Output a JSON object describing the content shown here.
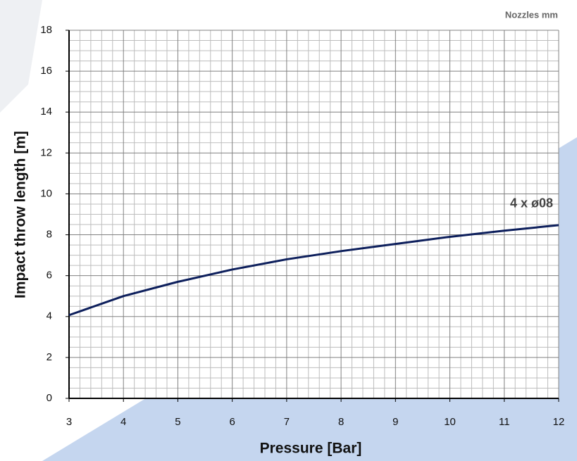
{
  "chart_data": {
    "type": "line",
    "annotation": "Nozzles mm",
    "x_label": "Pressure [Bar]",
    "y_label": "Impact throw length [m]",
    "x": [
      3,
      4,
      5,
      6,
      7,
      8,
      9,
      10,
      11,
      12
    ],
    "series": [
      {
        "name": "4 x ø08",
        "color": "#0d1f5c",
        "values": [
          4.07,
          5.0,
          5.7,
          6.3,
          6.8,
          7.2,
          7.55,
          7.9,
          8.2,
          8.47
        ]
      }
    ],
    "xlim": [
      3,
      12
    ],
    "xticks": [
      3,
      4,
      5,
      6,
      7,
      8,
      9,
      10,
      11,
      12
    ],
    "ylim": [
      0,
      18
    ],
    "yticks": [
      0,
      2,
      4,
      6,
      8,
      10,
      12,
      14,
      16,
      18
    ],
    "grid": true
  }
}
